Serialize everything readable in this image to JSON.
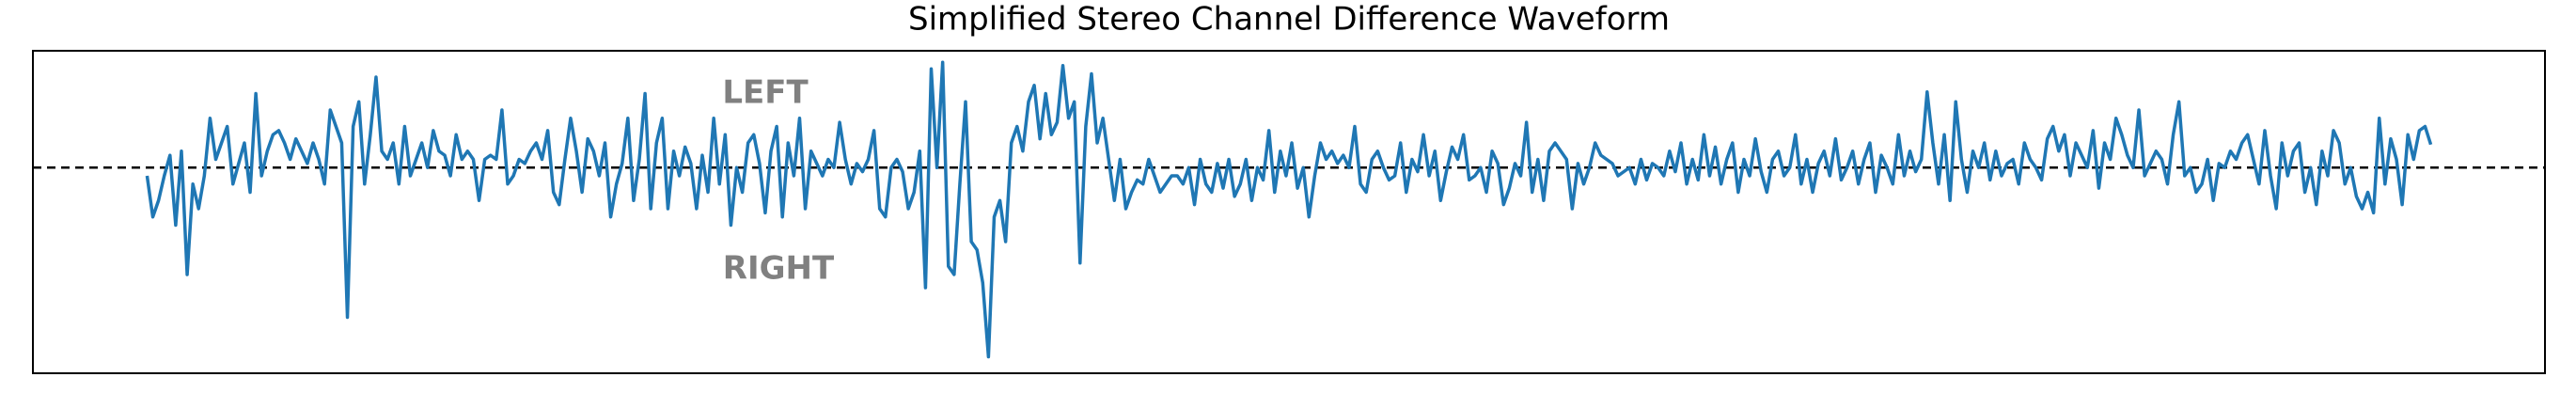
{
  "chart_data": {
    "type": "line",
    "title": "Simplified Stereo Channel Difference Waveform",
    "annotations": [
      "LEFT",
      "RIGHT"
    ],
    "reference_line": 0,
    "xlim": [
      -19.95,
      418.95
    ],
    "ylim": [
      -2.5,
      1.42
    ],
    "series": [
      {
        "color": "#1f77b4",
        "values": [
          -0.1,
          -0.6,
          -0.4,
          -0.1,
          0.15,
          -0.7,
          0.2,
          -1.3,
          -0.2,
          -0.5,
          -0.1,
          0.6,
          0.1,
          0.3,
          0.5,
          -0.2,
          0.05,
          0.3,
          -0.3,
          0.9,
          -0.1,
          0.2,
          0.4,
          0.45,
          0.3,
          0.1,
          0.35,
          0.2,
          0.05,
          0.3,
          0.1,
          -0.2,
          0.7,
          0.5,
          0.3,
          -1.82,
          0.5,
          0.8,
          -0.2,
          0.4,
          1.1,
          0.2,
          0.1,
          0.3,
          -0.2,
          0.5,
          -0.1,
          0.1,
          0.3,
          0.0,
          0.45,
          0.2,
          0.15,
          -0.1,
          0.4,
          0.1,
          0.2,
          0.1,
          -0.4,
          0.1,
          0.15,
          0.1,
          0.7,
          -0.2,
          -0.1,
          0.1,
          0.05,
          0.2,
          0.3,
          0.1,
          0.45,
          -0.3,
          -0.45,
          0.1,
          0.6,
          0.2,
          -0.3,
          0.35,
          0.2,
          -0.1,
          0.3,
          -0.6,
          -0.2,
          0.05,
          0.6,
          -0.4,
          0.1,
          0.9,
          -0.5,
          0.3,
          0.6,
          -0.5,
          0.2,
          -0.1,
          0.25,
          0.05,
          -0.5,
          0.15,
          -0.3,
          0.6,
          -0.2,
          0.4,
          -0.7,
          0.0,
          -0.3,
          0.3,
          0.4,
          0.05,
          -0.55,
          0.2,
          0.5,
          -0.6,
          0.3,
          -0.1,
          0.6,
          -0.5,
          0.2,
          0.05,
          -0.1,
          0.1,
          0.0,
          0.55,
          0.1,
          -0.2,
          0.05,
          -0.05,
          0.1,
          0.45,
          -0.5,
          -0.6,
          0.0,
          0.1,
          -0.05,
          -0.5,
          -0.3,
          0.2,
          -1.46,
          1.2,
          0.0,
          1.28,
          -1.2,
          -1.3,
          -0.2,
          0.8,
          -0.9,
          -1.0,
          -1.4,
          -2.3,
          -0.6,
          -0.4,
          -0.9,
          0.3,
          0.5,
          0.2,
          0.8,
          1.0,
          0.35,
          0.9,
          0.4,
          0.55,
          1.24,
          0.6,
          0.8,
          -1.16,
          0.5,
          1.14,
          0.3,
          0.6,
          0.1,
          -0.4,
          0.1,
          -0.5,
          -0.3,
          -0.15,
          -0.2,
          0.1,
          -0.1,
          -0.3,
          -0.2,
          -0.1,
          -0.1,
          -0.2,
          0.0,
          -0.45,
          0.1,
          -0.2,
          -0.3,
          0.05,
          -0.25,
          0.1,
          -0.35,
          -0.2,
          0.1,
          -0.4,
          0.0,
          -0.15,
          0.45,
          -0.3,
          0.2,
          -0.1,
          0.3,
          -0.25,
          0.0,
          -0.6,
          -0.1,
          0.3,
          0.1,
          0.2,
          0.05,
          0.15,
          0.0,
          0.5,
          -0.2,
          -0.3,
          0.1,
          0.2,
          0.0,
          -0.15,
          -0.1,
          0.3,
          -0.3,
          0.1,
          -0.05,
          0.4,
          -0.1,
          0.2,
          -0.4,
          -0.05,
          0.25,
          0.1,
          0.4,
          -0.15,
          -0.1,
          0.0,
          -0.3,
          0.2,
          0.05,
          -0.45,
          -0.25,
          0.05,
          -0.1,
          0.55,
          -0.3,
          0.1,
          -0.4,
          0.2,
          0.3,
          0.2,
          0.1,
          -0.5,
          0.05,
          -0.2,
          0.0,
          0.3,
          0.15,
          0.1,
          0.05,
          -0.1,
          -0.05,
          0.0,
          -0.2,
          0.1,
          -0.15,
          0.05,
          0.0,
          -0.1,
          0.2,
          -0.05,
          0.3,
          -0.2,
          0.1,
          -0.15,
          0.4,
          -0.1,
          0.25,
          -0.2,
          0.1,
          0.3,
          -0.3,
          0.1,
          -0.1,
          0.35,
          -0.05,
          -0.3,
          0.1,
          0.2,
          -0.1,
          0.0,
          0.4,
          -0.2,
          0.1,
          -0.3,
          0.05,
          0.2,
          -0.1,
          0.35,
          -0.15,
          0.0,
          0.2,
          -0.2,
          0.1,
          0.3,
          -0.3,
          0.15,
          0.0,
          -0.2,
          0.4,
          -0.1,
          0.2,
          -0.05,
          0.1,
          0.92,
          0.3,
          -0.2,
          0.4,
          -0.4,
          0.8,
          0.1,
          -0.3,
          0.2,
          0.0,
          0.3,
          -0.15,
          0.2,
          -0.1,
          0.05,
          0.1,
          -0.2,
          0.3,
          0.1,
          0.0,
          -0.15,
          0.35,
          0.5,
          0.2,
          0.4,
          -0.1,
          0.3,
          0.15,
          0.0,
          0.45,
          -0.25,
          0.3,
          0.1,
          0.6,
          0.4,
          0.15,
          0.0,
          0.7,
          -0.1,
          0.05,
          0.2,
          0.1,
          -0.2,
          0.4,
          0.8,
          -0.1,
          0.0,
          -0.3,
          -0.2,
          0.1,
          -0.4,
          0.05,
          0.0,
          0.2,
          0.1,
          0.3,
          0.4,
          0.1,
          -0.2,
          0.45,
          -0.1,
          -0.5,
          0.3,
          -0.1,
          0.2,
          0.3,
          -0.3,
          0.0,
          -0.45,
          0.2,
          -0.1,
          0.45,
          0.3,
          -0.2,
          0.0,
          -0.35,
          -0.5,
          -0.3,
          -0.55,
          0.6,
          -0.2,
          0.35,
          0.1,
          -0.45,
          0.4,
          0.1,
          0.45,
          0.5,
          0.28
        ]
      }
    ]
  }
}
